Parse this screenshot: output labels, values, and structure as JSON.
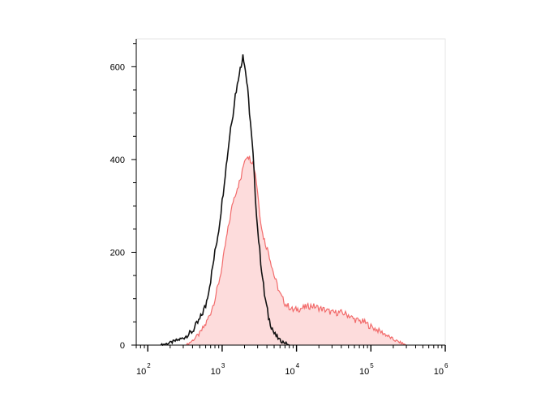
{
  "chart_data": {
    "type": "area",
    "title": "",
    "xlabel": "",
    "ylabel": "",
    "x_scale": "log",
    "xlim": [
      70,
      1000000
    ],
    "ylim": [
      0,
      660
    ],
    "grid": false,
    "legend": "none",
    "x_ticks": [
      {
        "base": "10",
        "exp": "2",
        "value": 100
      },
      {
        "base": "10",
        "exp": "3",
        "value": 1000
      },
      {
        "base": "10",
        "exp": "4",
        "value": 10000
      },
      {
        "base": "10",
        "exp": "5",
        "value": 100000
      },
      {
        "base": "10",
        "exp": "6",
        "value": 1000000
      }
    ],
    "y_ticks": [
      {
        "label": "0",
        "value": 0
      },
      {
        "label": "200",
        "value": 200
      },
      {
        "label": "400",
        "value": 400
      },
      {
        "label": "600",
        "value": 600
      }
    ],
    "series": [
      {
        "style": "filled",
        "color": "#f26b6b",
        "fill": "#fddcdc",
        "points": [
          [
            330,
            0
          ],
          [
            400,
            10
          ],
          [
            500,
            25
          ],
          [
            600,
            45
          ],
          [
            700,
            70
          ],
          [
            800,
            100
          ],
          [
            900,
            135
          ],
          [
            1000,
            170
          ],
          [
            1100,
            215
          ],
          [
            1200,
            250
          ],
          [
            1400,
            310
          ],
          [
            1600,
            340
          ],
          [
            1800,
            360
          ],
          [
            2000,
            400
          ],
          [
            2200,
            410
          ],
          [
            2400,
            400
          ],
          [
            2600,
            395
          ],
          [
            2800,
            370
          ],
          [
            3000,
            330
          ],
          [
            3200,
            285
          ],
          [
            3500,
            240
          ],
          [
            3800,
            220
          ],
          [
            4200,
            200
          ],
          [
            5000,
            150
          ],
          [
            6000,
            110
          ],
          [
            7000,
            90
          ],
          [
            9000,
            75
          ],
          [
            12000,
            80
          ],
          [
            16000,
            85
          ],
          [
            20000,
            80
          ],
          [
            25000,
            75
          ],
          [
            30000,
            70
          ],
          [
            40000,
            70
          ],
          [
            50000,
            65
          ],
          [
            60000,
            55
          ],
          [
            80000,
            50
          ],
          [
            100000,
            40
          ],
          [
            150000,
            25
          ],
          [
            200000,
            12
          ],
          [
            300000,
            0
          ]
        ]
      },
      {
        "style": "line",
        "color": "#111111",
        "points": [
          [
            150,
            0
          ],
          [
            200,
            5
          ],
          [
            300,
            15
          ],
          [
            400,
            30
          ],
          [
            500,
            55
          ],
          [
            600,
            85
          ],
          [
            700,
            140
          ],
          [
            800,
            200
          ],
          [
            900,
            250
          ],
          [
            1000,
            310
          ],
          [
            1100,
            370
          ],
          [
            1200,
            420
          ],
          [
            1300,
            470
          ],
          [
            1400,
            500
          ],
          [
            1500,
            540
          ],
          [
            1600,
            560
          ],
          [
            1700,
            590
          ],
          [
            1800,
            600
          ],
          [
            1900,
            630
          ],
          [
            2000,
            605
          ],
          [
            2100,
            580
          ],
          [
            2200,
            550
          ],
          [
            2400,
            480
          ],
          [
            2600,
            410
          ],
          [
            2800,
            320
          ],
          [
            3000,
            250
          ],
          [
            3300,
            180
          ],
          [
            3700,
            110
          ],
          [
            4200,
            60
          ],
          [
            5000,
            25
          ],
          [
            6000,
            10
          ],
          [
            7000,
            5
          ],
          [
            8000,
            0
          ]
        ]
      }
    ]
  }
}
